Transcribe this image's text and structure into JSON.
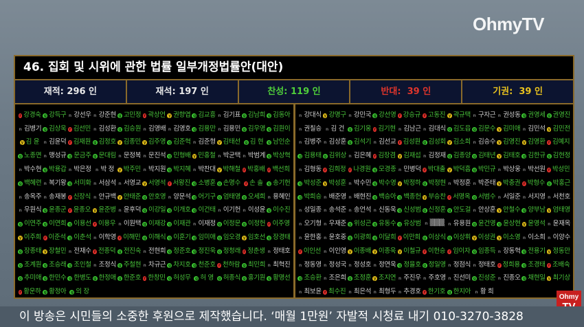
{
  "brand": {
    "logo": "OhmyTV",
    "mini_logo_top": "Ohmy",
    "mini_logo_bottom": "TV"
  },
  "board": {
    "title": "46. 집회 및 시위에 관한 법률 일부개정법률안(대안)",
    "stats": [
      {
        "label": "재적: 296 인",
        "color": "#e8e8e8"
      },
      {
        "label": "재석: 197 인",
        "color": "#e8e8e8"
      },
      {
        "label": "찬성: 119 인",
        "color": "#4fcf3a"
      },
      {
        "label": "반대:  39 인",
        "color": "#e0352b"
      },
      {
        "label": "기권:  39 인",
        "color": "#e9c21e"
      }
    ],
    "status_colors": {
      "g": "#3fcf34",
      "r": "#e0302a",
      "y": "#e6c21a",
      "n": "none"
    },
    "text_colors": {
      "voted": "#48c23a",
      "not_voted": "#cfcfcf"
    },
    "left": [
      [
        "r강경숙",
        "g강득구",
        "n강선우",
        "n강준현",
        "g고민정",
        "r곽상언",
        "y권향엽",
        "g김교흥",
        "n김기표",
        "g김남희",
        "g김동아"
      ],
      [
        "n김병기",
        "g김상욱",
        "r김선민",
        "n김성환",
        "g김승원",
        "n김영배",
        "n김영호",
        "g김용만",
        "n김용민",
        "g김우영",
        "g김원이"
      ],
      [
        "y김 윤",
        "n김윤덕",
        "r김재원",
        "g김정호",
        "y김종민",
        "y김주영",
        "g김준혁",
        "n김준형",
        "y김태선",
        "g김 현",
        "g남인순"
      ],
      [
        "g노종면",
        "n맹성규",
        "g문금주",
        "g문대림",
        "n문정복",
        "n문진석",
        "g민형배",
        "y민홍철",
        "n박균택",
        "n박범계",
        "g박상혁"
      ],
      [
        "n박수현",
        "g박용갑",
        "n박은정",
        "n박 정",
        "y박주민",
        "n박지원",
        "g박지혜",
        "n박찬대",
        "y박해철",
        "r박홍배",
        "r백선희"
      ],
      [
        "g백혜련",
        "n복기왕",
        "g서미화",
        "n서삼석",
        "n서영교",
        "y서영석",
        "r서왕진",
        "g소병훈",
        "g손명수",
        "r손 솔",
        "g송기헌"
      ],
      [
        "n송옥주",
        "n송재봉",
        "r신장식",
        "n안규백",
        "y안태준",
        "g안호영",
        "n양문석",
        "g어기구",
        "g엄태영",
        "g오세희",
        "n용혜인"
      ],
      [
        "n우원식",
        "g윤종군",
        "r윤종오",
        "y윤준병",
        "n윤후덕",
        "g이강일",
        "g이개호",
        "g이건태",
        "n이기헌",
        "n이성윤",
        "g이수진"
      ],
      [
        "g이연주",
        "g이연희",
        "g이용선",
        "r이용우",
        "n이원택",
        "g이재강",
        "g이재관",
        "n이재정",
        "g이정문",
        "g이정헌",
        "r이주영"
      ],
      [
        "y이주희",
        "r이준석",
        "g이춘석",
        "n이학영",
        "r이해민",
        "g이해식",
        "g이훈기",
        "g임미애",
        "g임오경",
        "y임호선",
        "g장경태"
      ],
      [
        "g장종태",
        "y장철민",
        "n전재수",
        "r전종덕",
        "g전진숙",
        "n전현희",
        "g정준호",
        "g정진욱",
        "g정청래",
        "r정춘생",
        "n정태호"
      ],
      [
        "g조계원",
        "g조승래",
        "g조인철",
        "n조정식",
        "g주철현",
        "n차규근",
        "g차지호",
        "g천준호",
        "r천하람",
        "g최민희",
        "n최혁진"
      ],
      [
        "g추미애",
        "g한민수",
        "g한병도",
        "g한정애",
        "g한준호",
        "r한창민",
        "g허성무",
        "g허 영",
        "g허종식",
        "g홍기원",
        "g황명선"
      ],
      [
        "r황운하",
        "g황정아",
        "g의 장"
      ]
    ],
    "right": [
      [
        "n강대식",
        "y강명구",
        "n강민국",
        "g강선영",
        "r강승규",
        "r고동진",
        "y곽규택",
        "n구자근",
        "n권성동",
        "g권영세",
        "g권영진"
      ],
      [
        "n권칠승",
        "n김 건",
        "g김기웅",
        "r김기현",
        "n김남근",
        "n김대식",
        "g김도읍",
        "g김문수",
        "y김미애",
        "n김민석",
        "y김민전"
      ],
      [
        "n김병주",
        "n김상훈",
        "g김석기",
        "n김선교",
        "r김성원",
        "g김성회",
        "y김소희",
        "n김승수",
        "y김영진",
        "y김영환",
        "r김예지"
      ],
      [
        "g김용태",
        "g김위상",
        "n김은혜",
        "r김장겸",
        "y김재섭",
        "n김정재",
        "g김종양",
        "g김태년",
        "y김태호",
        "g김한규",
        "g김현정"
      ],
      [
        "n김형동",
        "r김희정",
        "r나경원",
        "g모경종",
        "n민병덕",
        "r박대출",
        "y박덕흠",
        "g박민규",
        "n박상웅",
        "n박선원",
        "r박성민"
      ],
      [
        "g박성준",
        "y박성훈",
        "n박수민",
        "g박수영",
        "y박정하",
        "g박정현",
        "n박정훈",
        "n박준태",
        "y박충권",
        "r박형수",
        "g박홍근"
      ],
      [
        "g박희승",
        "n배준영",
        "n배현진",
        "g백승아",
        "g백종헌",
        "y부승찬",
        "r서명옥",
        "g서범수",
        "n서일준",
        "n서지영",
        "n서천호"
      ],
      [
        "n성일종",
        "n송석준",
        "n송언석",
        "n신동욱",
        "g신성범",
        "g신정훈",
        "g안도걸",
        "n안상훈",
        "y안철수",
        "g양부남",
        "y엄태영"
      ],
      [
        "n오기형",
        "n우재준",
        "g위성곤",
        "g유동수",
        "g유상범",
        "n▒▒▒",
        "n유용원",
        "g윤건영",
        "g윤상현",
        "y윤영석",
        "n윤재옥"
      ],
      [
        "n윤한홍",
        "n윤호중",
        "g이광희",
        "g이달희",
        "r이만희",
        "g이상식",
        "g이상휘",
        "y이성권",
        "y이소영",
        "n이소희",
        "n이양수"
      ],
      [
        "r이인선",
        "n이인영",
        "y이종배",
        "y이종욱",
        "y이철규",
        "r이헌승",
        "r임이자",
        "g임종득",
        "n장동혁",
        "g전용기",
        "y정동만"
      ],
      [
        "n정동영",
        "n정성국",
        "n정성호",
        "n정연욱",
        "g정을호",
        "g정일영",
        "n정점식",
        "n정태호",
        "r정희용",
        "g조경태",
        "r조배숙"
      ],
      [
        "g조승환",
        "n조은희",
        "g조정훈",
        "y조지연",
        "n주진우",
        "n주호영",
        "n진선미",
        "g진성준",
        "n진종오",
        "g채현일",
        "y최기상"
      ],
      [
        "n최보윤",
        "r최수진",
        "n최은석",
        "n최형두",
        "n추경호",
        "r한기호",
        "g한지아",
        "n황 희"
      ]
    ]
  },
  "ticker": {
    "text": "이 방송은 시민들의 소중한 후원으로 제작했습니다. ‘매월 1만원’ 자발적 시청료 내기 010-3270-3828"
  }
}
